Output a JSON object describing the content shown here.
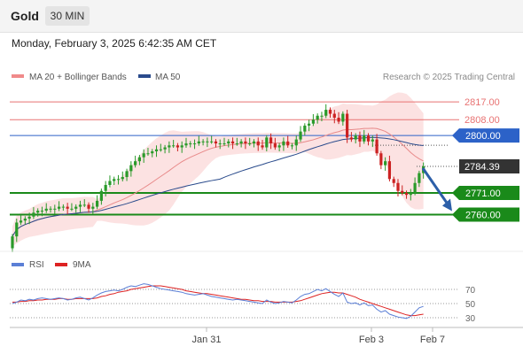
{
  "header": {
    "symbol": "Gold",
    "timeframe": "30 MIN"
  },
  "datetime": "Monday, February 3, 2025 6:42:35 AM CET",
  "legend": {
    "bollinger": "MA 20 + Bollinger Bands",
    "ma50": "MA 50",
    "credit": "Research © 2025 Trading Central"
  },
  "colors": {
    "resistance": "#e87272",
    "pivot": "#2c62c8",
    "support": "#1a8a1a",
    "current": "#333333",
    "ma50": "#2a4b8c",
    "bollinger_fill": "#fbd6d6",
    "bollinger_line": "#e88a8a",
    "candle_up": "#2a9a2a",
    "candle_down": "#cc2222",
    "arrow": "#2c5fa8",
    "rsi": "#5b7fd6",
    "rsi_ma": "#dd2222"
  },
  "chart_data": [
    {
      "type": "candlestick",
      "title": "Gold 30 MIN",
      "ylim": [
        2741,
        2826
      ],
      "x_ticks": [
        "Jan 31",
        "Feb 3",
        "Feb 7"
      ],
      "indicators": [
        "MA 20 + Bollinger Bands",
        "MA 50"
      ],
      "levels": [
        {
          "value": 2817.0,
          "label": "2817.00",
          "kind": "resistance"
        },
        {
          "value": 2808.0,
          "label": "2808.00",
          "kind": "resistance"
        },
        {
          "value": 2800.0,
          "label": "2800.00",
          "kind": "pivot"
        },
        {
          "value": 2771.0,
          "label": "2771.00",
          "kind": "support"
        },
        {
          "value": 2760.0,
          "label": "2760.00",
          "kind": "support"
        }
      ],
      "current_price": {
        "value": 2784.39,
        "label": "2784.39"
      },
      "forecast": {
        "direction": "down",
        "from": 2784.39,
        "to": 2760.0
      },
      "close": [
        2749,
        2756,
        2757,
        2758,
        2759,
        2761,
        2762,
        2762,
        2763,
        2763,
        2763,
        2764,
        2764,
        2763,
        2763,
        2764,
        2765,
        2765,
        2763,
        2764,
        2767,
        2772,
        2775,
        2777,
        2778,
        2778,
        2779,
        2782,
        2785,
        2787,
        2789,
        2791,
        2791,
        2792,
        2793,
        2793,
        2794,
        2795,
        2795,
        2794,
        2795,
        2796,
        2796,
        2796,
        2797,
        2797,
        2797,
        2797,
        2796,
        2796,
        2796,
        2797,
        2796,
        2796,
        2797,
        2796,
        2796,
        2797,
        2795,
        2794,
        2799,
        2796,
        2794,
        2795,
        2797,
        2795,
        2795,
        2798,
        2802,
        2805,
        2806,
        2808,
        2810,
        2810,
        2813,
        2811,
        2809,
        2807,
        2811,
        2799,
        2798,
        2800,
        2797,
        2800,
        2797,
        2798,
        2791,
        2785,
        2787,
        2778,
        2776,
        2772,
        2771,
        2770,
        2771,
        2776,
        2781,
        2784.39
      ]
    },
    {
      "type": "line",
      "title": "RSI",
      "series_names": [
        "RSI",
        "9MA"
      ],
      "y_ticks": [
        70,
        50,
        30
      ],
      "rsi": [
        50,
        52,
        55,
        54,
        56,
        55,
        57,
        58,
        57,
        56,
        57,
        58,
        57,
        55,
        56,
        58,
        59,
        57,
        55,
        58,
        62,
        65,
        67,
        68,
        69,
        68,
        70,
        73,
        75,
        74,
        76,
        78,
        77,
        75,
        73,
        71,
        70,
        69,
        68,
        67,
        66,
        64,
        63,
        62,
        63,
        64,
        62,
        60,
        59,
        58,
        57,
        56,
        55,
        56,
        55,
        54,
        53,
        52,
        51,
        50,
        55,
        52,
        50,
        51,
        53,
        52,
        51,
        55,
        60,
        63,
        64,
        67,
        70,
        68,
        71,
        67,
        63,
        60,
        65,
        52,
        50,
        51,
        48,
        51,
        47,
        48,
        42,
        38,
        40,
        35,
        33,
        31,
        30,
        29,
        32,
        38,
        44,
        46
      ],
      "ma9": [
        52,
        52,
        53,
        53,
        54,
        54,
        55,
        55,
        56,
        56,
        56,
        57,
        57,
        56,
        56,
        57,
        57,
        57,
        57,
        57,
        58,
        60,
        61,
        63,
        64,
        66,
        67,
        68,
        70,
        71,
        72,
        73,
        74,
        75,
        75,
        75,
        74,
        73,
        72,
        71,
        70,
        68,
        67,
        66,
        65,
        64,
        64,
        63,
        62,
        61,
        60,
        59,
        58,
        57,
        56,
        56,
        55,
        54,
        54,
        53,
        53,
        53,
        52,
        52,
        52,
        52,
        52,
        53,
        54,
        56,
        58,
        60,
        62,
        64,
        65,
        66,
        66,
        65,
        65,
        63,
        61,
        59,
        56,
        54,
        52,
        50,
        48,
        46,
        44,
        42,
        40,
        38,
        36,
        34,
        33,
        33,
        34,
        35
      ]
    }
  ]
}
